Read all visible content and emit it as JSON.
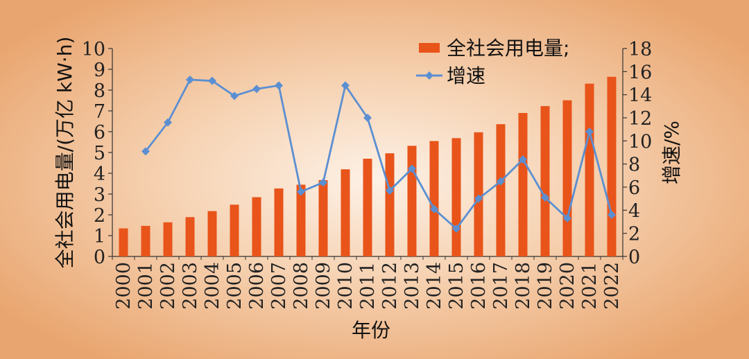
{
  "chart_data": {
    "type": "bar+line",
    "categories": [
      "2000",
      "2001",
      "2002",
      "2003",
      "2004",
      "2005",
      "2006",
      "2007",
      "2008",
      "2009",
      "2010",
      "2011",
      "2012",
      "2013",
      "2014",
      "2015",
      "2016",
      "2017",
      "2018",
      "2019",
      "2020",
      "2021",
      "2022"
    ],
    "series": [
      {
        "name": "全社会用电量;",
        "type": "bar",
        "axis": "left",
        "color": "#e8541a",
        "values": [
          1.35,
          1.47,
          1.64,
          1.89,
          2.18,
          2.49,
          2.85,
          3.27,
          3.45,
          3.67,
          4.19,
          4.7,
          4.96,
          5.32,
          5.55,
          5.69,
          5.97,
          6.36,
          6.9,
          7.23,
          7.51,
          8.31,
          8.64
        ]
      },
      {
        "name": "增速",
        "type": "line",
        "axis": "right",
        "color": "#5b8fd1",
        "values": [
          null,
          9.1,
          11.6,
          15.3,
          15.2,
          13.9,
          14.5,
          14.8,
          5.6,
          6.4,
          14.8,
          12.0,
          5.7,
          7.6,
          4.1,
          2.4,
          5.0,
          6.5,
          8.4,
          5.1,
          3.3,
          10.8,
          3.6
        ]
      }
    ],
    "xlabel": "年份",
    "ylabel_left": "全社会用电量/(万亿 kW·h)",
    "ylabel_right": "增速/%",
    "ylim_left": [
      0,
      10
    ],
    "ylim_right": [
      0,
      18
    ],
    "yticks_left": [
      "0",
      "1",
      "2",
      "3",
      "4",
      "5",
      "6",
      "7",
      "8",
      "9",
      "10"
    ],
    "yticks_right": [
      "0",
      "2",
      "4",
      "6",
      "8",
      "10",
      "12",
      "14",
      "16",
      "18"
    ],
    "grid": false,
    "legend_position": "top-right",
    "background": "radial gradient, light center to tan/orange edges"
  }
}
